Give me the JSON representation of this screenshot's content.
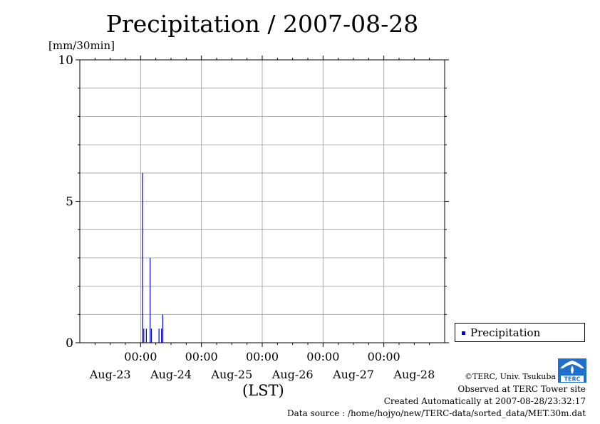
{
  "title": "Precipitation / 2007-08-28",
  "y_unit": "[mm/30min]",
  "x_axis_label": "(LST)",
  "legend": {
    "label": "Precipitation"
  },
  "credits": {
    "org": "©TERC, Univ. Tsukuba",
    "site": "Observed at TERC Tower site",
    "created": "Created Automatically at 2007-08-28/23:32:17",
    "source": "Data source : /home/hojyo/new/TERC-data/sorted_data/MET.30m.dat"
  },
  "logo_text": "TERC",
  "colors": {
    "series": "#0000cc",
    "grid": "#999999",
    "axis": "#000000"
  },
  "chart_data": {
    "type": "bar",
    "title": "Precipitation / 2007-08-28",
    "ylabel": "[mm/30min]",
    "xlabel": "(LST)",
    "ylim": [
      0,
      10
    ],
    "y_ticks": [
      {
        "value": 0,
        "label": "0"
      },
      {
        "value": 5,
        "label": "5"
      },
      {
        "value": 10,
        "label": "10"
      }
    ],
    "y_minor_step": 1,
    "x_hour_range": [
      0,
      144
    ],
    "x_ticks": [
      {
        "hour": 24,
        "time": "00:00",
        "day": "Aug-23"
      },
      {
        "hour": 48,
        "time": "00:00",
        "day": "Aug-24"
      },
      {
        "hour": 72,
        "time": "00:00",
        "day": "Aug-25"
      },
      {
        "hour": 96,
        "time": "00:00",
        "day": "Aug-26"
      },
      {
        "hour": 120,
        "time": "00:00",
        "day": "Aug-27"
      },
      {
        "hour": 144,
        "time": "00:00",
        "day": "Aug-28"
      }
    ],
    "grid": true,
    "legend_position": "bottom-right",
    "series": [
      {
        "name": "Precipitation",
        "points": [
          {
            "datetime": "2007-08-22 01:00",
            "value": 6.0
          },
          {
            "datetime": "2007-08-22 01:30",
            "value": 0.5
          },
          {
            "datetime": "2007-08-22 02:30",
            "value": 0.5
          },
          {
            "datetime": "2007-08-22 04:00",
            "value": 3.0
          },
          {
            "datetime": "2007-08-22 04:30",
            "value": 0.5
          },
          {
            "datetime": "2007-08-22 07:30",
            "value": 0.5
          },
          {
            "datetime": "2007-08-22 08:30",
            "value": 0.5
          },
          {
            "datetime": "2007-08-22 09:00",
            "value": 1.0
          }
        ]
      }
    ]
  }
}
